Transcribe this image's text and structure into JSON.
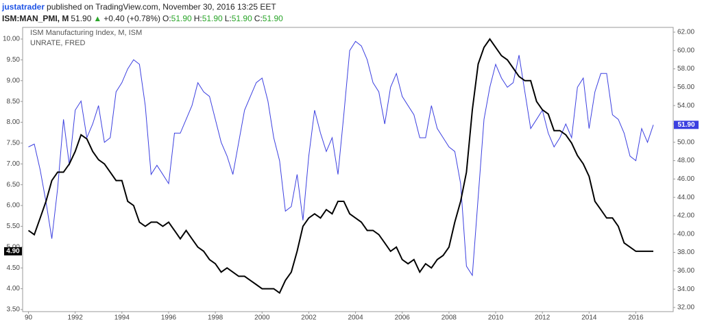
{
  "header": {
    "author": "justatrader",
    "published": "published on TradingView.com, November 30, 2016 13:25 EET",
    "symbol": "ISM:MAN_PMI, M",
    "last": "51.90",
    "arrow": "▲",
    "change": "+0.40 (+0.78%)",
    "ohlc": [
      {
        "label": "O:",
        "value": "51.90"
      },
      {
        "label": "H:",
        "value": "51.90"
      },
      {
        "label": "L:",
        "value": "51.90"
      },
      {
        "label": "C:",
        "value": "51.90"
      }
    ]
  },
  "chart_data": {
    "type": "line",
    "x": [
      1990,
      1990.25,
      1990.5,
      1990.75,
      1991,
      1991.25,
      1991.5,
      1991.75,
      1992,
      1992.25,
      1992.5,
      1992.75,
      1993,
      1993.25,
      1993.5,
      1993.75,
      1994,
      1994.25,
      1994.5,
      1994.75,
      1995,
      1995.25,
      1995.5,
      1995.75,
      1996,
      1996.25,
      1996.5,
      1996.75,
      1997,
      1997.25,
      1997.5,
      1997.75,
      1998,
      1998.25,
      1998.5,
      1998.75,
      1999,
      1999.25,
      1999.5,
      1999.75,
      2000,
      2000.25,
      2000.5,
      2000.75,
      2001,
      2001.25,
      2001.5,
      2001.75,
      2002,
      2002.25,
      2002.5,
      2002.75,
      2003,
      2003.25,
      2003.5,
      2003.75,
      2004,
      2004.25,
      2004.5,
      2004.75,
      2005,
      2005.25,
      2005.5,
      2005.75,
      2006,
      2006.25,
      2006.5,
      2006.75,
      2007,
      2007.25,
      2007.5,
      2007.75,
      2008,
      2008.25,
      2008.5,
      2008.75,
      2009,
      2009.25,
      2009.5,
      2009.75,
      2010,
      2010.25,
      2010.5,
      2010.75,
      2011,
      2011.25,
      2011.5,
      2011.75,
      2012,
      2012.25,
      2012.5,
      2012.75,
      2013,
      2013.25,
      2013.5,
      2013.75,
      2014,
      2014.25,
      2014.5,
      2014.75,
      2015,
      2015.25,
      2015.5,
      2015.75,
      2016,
      2016.25,
      2016.5,
      2016.75
    ],
    "series": [
      {
        "name": "ISM Manufacturing Index, M, ISM",
        "color": "#3b3fe0",
        "axis": "y2",
        "last_label": "51.90",
        "values": [
          49.5,
          49.8,
          47.0,
          43.5,
          39.5,
          45.0,
          52.5,
          47.5,
          53.5,
          54.5,
          50.5,
          52.0,
          54.0,
          50.0,
          50.5,
          55.5,
          56.5,
          58.0,
          59.0,
          58.5,
          54.0,
          46.5,
          47.5,
          46.5,
          45.5,
          51.0,
          51.0,
          52.5,
          54.0,
          56.5,
          55.5,
          55.0,
          52.5,
          50.0,
          48.5,
          46.5,
          50.0,
          53.5,
          55.0,
          56.5,
          57.0,
          54.5,
          50.5,
          48.0,
          42.5,
          43.0,
          46.5,
          41.5,
          48.5,
          53.5,
          51.0,
          49.0,
          50.5,
          46.5,
          53.0,
          60.0,
          61.0,
          60.5,
          59.0,
          56.5,
          55.5,
          52.0,
          56.0,
          57.5,
          55.0,
          54.0,
          53.0,
          50.5,
          50.5,
          54.0,
          51.5,
          50.5,
          49.5,
          49.0,
          45.5,
          36.5,
          35.5,
          44.0,
          52.5,
          56.0,
          58.5,
          57.0,
          56.0,
          56.5,
          59.5,
          55.5,
          51.5,
          52.5,
          53.5,
          51.0,
          49.5,
          50.5,
          52.0,
          50.5,
          56.0,
          57.0,
          51.5,
          55.5,
          57.5,
          57.5,
          53.0,
          52.5,
          51.0,
          48.5,
          48.0,
          51.5,
          50.0,
          51.9
        ]
      },
      {
        "name": "UNRATE, FRED",
        "color": "#000000",
        "axis": "y",
        "last_label": "4.90",
        "values": [
          5.4,
          5.3,
          5.7,
          6.1,
          6.6,
          6.8,
          6.8,
          7.0,
          7.3,
          7.7,
          7.6,
          7.3,
          7.1,
          7.0,
          6.8,
          6.6,
          6.6,
          6.1,
          6.0,
          5.6,
          5.5,
          5.6,
          5.6,
          5.5,
          5.6,
          5.4,
          5.2,
          5.4,
          5.2,
          5.0,
          4.9,
          4.7,
          4.6,
          4.4,
          4.5,
          4.4,
          4.3,
          4.3,
          4.2,
          4.1,
          4.0,
          4.0,
          4.0,
          3.9,
          4.2,
          4.4,
          4.9,
          5.5,
          5.7,
          5.8,
          5.7,
          5.9,
          5.8,
          6.1,
          6.1,
          5.8,
          5.7,
          5.6,
          5.4,
          5.4,
          5.3,
          5.1,
          4.9,
          5.0,
          4.7,
          4.6,
          4.7,
          4.4,
          4.6,
          4.5,
          4.7,
          4.8,
          5.0,
          5.6,
          6.1,
          6.8,
          8.3,
          9.4,
          9.8,
          10.0,
          9.8,
          9.6,
          9.5,
          9.3,
          9.1,
          9.0,
          9.0,
          8.5,
          8.3,
          8.2,
          7.8,
          7.8,
          7.7,
          7.5,
          7.2,
          7.0,
          6.7,
          6.1,
          5.9,
          5.7,
          5.7,
          5.5,
          5.1,
          5.0,
          4.9,
          4.9,
          4.9,
          4.9
        ]
      }
    ],
    "xlim": [
      1989.75,
      2017.6
    ],
    "xticks": [
      {
        "value": 1990,
        "label": "90"
      },
      1992,
      1994,
      1996,
      1998,
      2000,
      2002,
      2004,
      2006,
      2008,
      2010,
      2012,
      2014,
      2016
    ],
    "ylim": [
      3.45,
      10.28
    ],
    "yticks": [
      {
        "value": 3.5,
        "label": "3.50"
      },
      {
        "value": 4,
        "label": "4.00"
      },
      {
        "value": 4.5,
        "label": "4.50"
      },
      {
        "value": 5,
        "label": "5.00"
      },
      {
        "value": 5.5,
        "label": "5.50"
      },
      {
        "value": 6,
        "label": "6.00"
      },
      {
        "value": 6.5,
        "label": "6.50"
      },
      {
        "value": 7,
        "label": "7.00"
      },
      {
        "value": 7.5,
        "label": "7.50"
      },
      {
        "value": 8,
        "label": "8.00"
      },
      {
        "value": 8.5,
        "label": "8.50"
      },
      {
        "value": 9,
        "label": "9.00"
      },
      {
        "value": 9.5,
        "label": "9.50"
      },
      {
        "value": 10,
        "label": "10.00"
      }
    ],
    "y2lim": [
      31.55,
      62.52
    ],
    "y2ticks": [
      {
        "value": 32,
        "label": "32.00"
      },
      {
        "value": 34,
        "label": "34.00"
      },
      {
        "value": 36,
        "label": "36.00"
      },
      {
        "value": 38,
        "label": "38.00"
      },
      {
        "value": 40,
        "label": "40.00"
      },
      {
        "value": 42,
        "label": "42.00"
      },
      {
        "value": 44,
        "label": "44.00"
      },
      {
        "value": 46,
        "label": "46.00"
      },
      {
        "value": 48,
        "label": "48.00"
      },
      {
        "value": 50,
        "label": "50.00"
      },
      {
        "value": 52,
        "label": "52.00"
      },
      {
        "value": 54,
        "label": "54.00"
      },
      {
        "value": 56,
        "label": "56.00"
      },
      {
        "value": 58,
        "label": "58.00"
      },
      {
        "value": 60,
        "label": "60.00"
      },
      {
        "value": 62,
        "label": "62.00"
      }
    ]
  }
}
